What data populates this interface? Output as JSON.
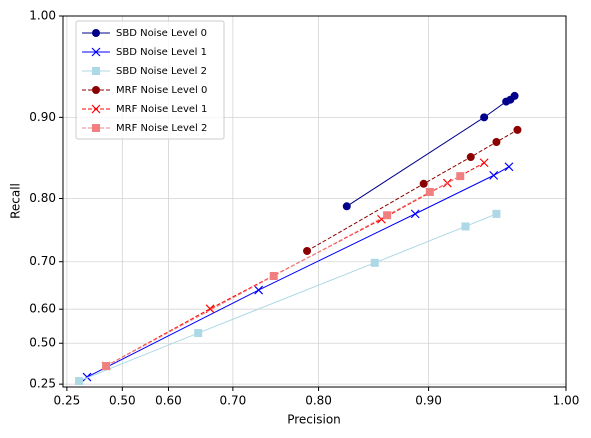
{
  "chart_data": {
    "type": "line",
    "xlabel": "Precision",
    "ylabel": "Recall",
    "xscale": "power",
    "yscale": "power",
    "scale_exponent": 3,
    "xlim": [
      0.2,
      1.0
    ],
    "ylim": [
      0.2,
      1.0
    ],
    "xticks": [
      0.25,
      {
        "value": 0.5,
        "label": "0.50"
      },
      {
        "value": 0.6,
        "label": "0.60"
      },
      {
        "value": 0.7,
        "label": "0.70"
      },
      {
        "value": 0.8,
        "label": "0.80"
      },
      {
        "value": 0.9,
        "label": "0.90"
      },
      {
        "value": 1.0,
        "label": "1.00"
      }
    ],
    "yticks": [
      0.25,
      {
        "value": 0.5,
        "label": "0.50"
      },
      {
        "value": 0.6,
        "label": "0.60"
      },
      {
        "value": 0.7,
        "label": "0.70"
      },
      {
        "value": 0.8,
        "label": "0.80"
      },
      {
        "value": 0.9,
        "label": "0.90"
      },
      {
        "value": 1.0,
        "label": "1.00"
      }
    ],
    "grid": true,
    "legend": "upper left",
    "series": [
      {
        "name": "SBD Noise Level 0",
        "color": "#00008b",
        "marker": "circle",
        "dashed": false,
        "x": [
          0.828,
          0.943,
          0.959,
          0.962,
          0.965
        ],
        "values": [
          0.789,
          0.9,
          0.917,
          0.919,
          0.923
        ]
      },
      {
        "name": "SBD Noise Level 1",
        "color": "#0000ff",
        "marker": "x",
        "dashed": false,
        "x": [
          0.381,
          0.733,
          0.889,
          0.95,
          0.961
        ],
        "values": [
          0.326,
          0.644,
          0.778,
          0.831,
          0.842
        ]
      },
      {
        "name": "SBD Noise Level 2",
        "color": "#add8e6",
        "marker": "square",
        "dashed": false,
        "x": [
          0.341,
          0.65,
          0.854,
          0.929,
          0.952
        ],
        "values": [
          0.288,
          0.534,
          0.698,
          0.759,
          0.778
        ]
      },
      {
        "name": "MRF Noise Level 0",
        "color": "#8b0000",
        "marker": "circle",
        "dashed": true,
        "x": [
          0.788,
          0.896,
          0.933,
          0.952,
          0.967
        ],
        "values": [
          0.719,
          0.82,
          0.854,
          0.872,
          0.886
        ]
      },
      {
        "name": "MRF Noise Level 1",
        "color": "#ff0000",
        "marker": "x",
        "dashed": true,
        "x": [
          0.453,
          0.668,
          0.86,
          0.915,
          0.943
        ],
        "values": [
          0.4,
          0.601,
          0.77,
          0.821,
          0.847
        ]
      },
      {
        "name": "MRF Noise Level 2",
        "color": "#f08080",
        "marker": "square",
        "dashed": true,
        "x": [
          0.453,
          0.751,
          0.865,
          0.901,
          0.925
        ],
        "values": [
          0.4,
          0.673,
          0.776,
          0.809,
          0.83
        ]
      }
    ]
  }
}
